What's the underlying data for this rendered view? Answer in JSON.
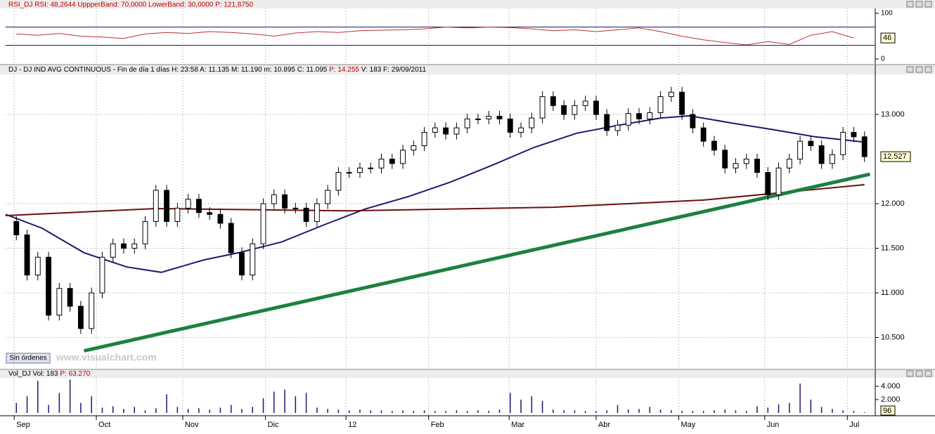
{
  "chart_data": {
    "type": "candlestick",
    "rsi_header": "RSI_DJ RSI: 48,2644 UppperBand: 70,0000 LowerBand: 30,0000 P: 121,8750",
    "price_header": "DJ - DJ IND AVG CONTINUOUS - Fin de día 1 días H: 23:58 A: 11.135 M: 11.190 m: 10.895 C: 11.095 ",
    "price_header_p": "P: 14.255",
    "price_header_rest": " V: 183 F: 29/09/2011",
    "volume_header": "Vol_DJ Vol: 183 ",
    "volume_header_p": "P: 63.270",
    "button": "Sin órdenes",
    "watermark": "www.visualchart.com",
    "xlim": [
      -1,
      80
    ],
    "xticks": [
      {
        "value": -0.2,
        "label": "Sep"
      },
      {
        "value": 7.45,
        "label": "Oct"
      },
      {
        "value": 15.5,
        "label": "Nov"
      },
      {
        "value": 23.2,
        "label": "Dic"
      },
      {
        "value": 30.7,
        "label": "12"
      },
      {
        "value": 38.4,
        "label": "Feb"
      },
      {
        "value": 45.9,
        "label": "Mar"
      },
      {
        "value": 54,
        "label": "Abr"
      },
      {
        "value": 61.7,
        "label": "May"
      },
      {
        "value": 69.7,
        "label": "Jun"
      },
      {
        "value": 77.4,
        "label": "Jul"
      }
    ],
    "ylim": [
      10150,
      13441
    ],
    "yticks": [
      {
        "value": 10500,
        "label": "10.500"
      },
      {
        "value": 11000,
        "label": "11.000"
      },
      {
        "value": 11500,
        "label": "11.500"
      },
      {
        "value": 12000,
        "label": "12.000"
      },
      {
        "value": 13000,
        "label": "13.000"
      }
    ],
    "last_price": {
      "value": 12527,
      "label": "12.527"
    },
    "up_color": "#ffffff",
    "down_color": "#000000",
    "open": [
      11800,
      11650,
      11200,
      11400,
      10750,
      11050,
      10850,
      10600,
      11000,
      11400,
      11550,
      11500,
      11550,
      11800,
      12150,
      11800,
      11950,
      12050,
      11900,
      11880,
      11780,
      11450,
      11200,
      11550,
      12000,
      12100,
      11950,
      11950,
      11800,
      12000,
      12150,
      12350,
      12350,
      12400,
      12400,
      12500,
      12450,
      12600,
      12650,
      12800,
      12850,
      12780,
      12850,
      12950,
      12950,
      12980,
      12950,
      12800,
      12850,
      12960,
      13200,
      13100,
      13000,
      13100,
      13150,
      13000,
      12820,
      12880,
      13010,
      12950,
      13020,
      13200,
      13250,
      13000,
      12850,
      12700,
      12600,
      12400,
      12450,
      12500,
      12350,
      12100,
      12400,
      12500,
      12700,
      12650,
      12450,
      12550,
      12800,
      12750
    ],
    "high": [
      11860,
      11710,
      11460,
      11460,
      11110,
      11110,
      10910,
      11060,
      11460,
      11610,
      11610,
      11610,
      11860,
      12210,
      12210,
      12010,
      12110,
      12110,
      11960,
      11940,
      11840,
      11510,
      11610,
      12060,
      12160,
      12160,
      12010,
      12010,
      12060,
      12210,
      12410,
      12410,
      12460,
      12460,
      12560,
      12560,
      12660,
      12710,
      12860,
      12910,
      12910,
      12910,
      13010,
      13010,
      13040,
      13040,
      13010,
      12910,
      13020,
      13260,
      13260,
      13160,
      13160,
      13210,
      13210,
      13060,
      12940,
      13070,
      13070,
      13080,
      13260,
      13310,
      13310,
      13060,
      12910,
      12760,
      12660,
      12510,
      12560,
      12560,
      12410,
      12460,
      12560,
      12760,
      12760,
      12710,
      12610,
      12860,
      12860,
      12810
    ],
    "low": [
      11590,
      11140,
      11140,
      10690,
      10690,
      10790,
      10540,
      10540,
      10940,
      11340,
      11440,
      11440,
      11490,
      11740,
      11740,
      11740,
      11890,
      11840,
      11820,
      11720,
      11390,
      11140,
      11140,
      11490,
      11940,
      11890,
      11890,
      11740,
      11740,
      11940,
      12090,
      12290,
      12290,
      12340,
      12340,
      12390,
      12390,
      12540,
      12590,
      12740,
      12720,
      12720,
      12790,
      12890,
      12890,
      12890,
      12740,
      12740,
      12790,
      12900,
      13040,
      12940,
      12940,
      13040,
      12940,
      12760,
      12760,
      12820,
      12890,
      12890,
      12960,
      13140,
      12940,
      12790,
      12640,
      12540,
      12340,
      12340,
      12390,
      12290,
      12040,
      12040,
      12340,
      12440,
      12590,
      12390,
      12390,
      12490,
      12690,
      12467
    ],
    "close": [
      11650,
      11200,
      11400,
      10750,
      11050,
      10850,
      10600,
      11000,
      11400,
      11550,
      11500,
      11550,
      11800,
      12150,
      11800,
      11950,
      12050,
      11900,
      11880,
      11780,
      11450,
      11200,
      11550,
      12000,
      12100,
      11950,
      11950,
      11800,
      12000,
      12150,
      12350,
      12350,
      12400,
      12400,
      12500,
      12450,
      12600,
      12650,
      12800,
      12850,
      12780,
      12850,
      12950,
      12950,
      12980,
      12950,
      12800,
      12850,
      12960,
      13200,
      13100,
      13000,
      13100,
      13150,
      13000,
      12820,
      12880,
      13010,
      12950,
      13020,
      13200,
      13250,
      13000,
      12850,
      12700,
      12600,
      12400,
      12450,
      12500,
      12350,
      12100,
      12400,
      12500,
      12700,
      12650,
      12450,
      12550,
      12800,
      12750,
      12527
    ],
    "overlays": [
      {
        "color": "#1a1a6e",
        "width": 2,
        "x": [
          -1,
          2.4,
          6.3,
          10.3,
          13.5,
          17.5,
          20.7,
          24.7,
          28.6,
          32.5,
          36.5,
          40.4,
          44.3,
          48.2,
          52.2,
          56.1,
          60,
          62.7,
          66.6,
          70.5,
          74.4,
          79
        ],
        "values": [
          11880,
          11725,
          11450,
          11290,
          11230,
          11370,
          11450,
          11570,
          11760,
          11940,
          12080,
          12240,
          12430,
          12630,
          12790,
          12880,
          12960,
          12985,
          12905,
          12830,
          12750,
          12690
        ]
      },
      {
        "color": "#6b1010",
        "width": 2,
        "x": [
          -1,
          13,
          31,
          50,
          64,
          79
        ],
        "values": [
          11866,
          11945,
          11920,
          11960,
          12040,
          12213
        ]
      },
      {
        "color": "#1e8040",
        "width": 5,
        "x": [
          6.3,
          79.5
        ],
        "values": [
          10350,
          12330
        ]
      }
    ],
    "rsi": {
      "color": "#c03030",
      "x": [
        0,
        2,
        4,
        6,
        8,
        10,
        12,
        14,
        16,
        18,
        20,
        22,
        24,
        26,
        28,
        30,
        32,
        34,
        36,
        38,
        40,
        42,
        44,
        46,
        48,
        50,
        52,
        54,
        56,
        58,
        60,
        62,
        64,
        66,
        68,
        70,
        72,
        74,
        76,
        78
      ],
      "values": [
        55,
        52,
        56,
        50,
        48,
        45,
        55,
        58,
        56,
        60,
        58,
        55,
        50,
        57,
        60,
        58,
        62,
        63,
        64,
        66,
        70,
        68,
        70,
        69,
        66,
        62,
        64,
        60,
        64,
        68,
        60,
        50,
        42,
        36,
        31,
        38,
        32,
        52,
        60,
        46
      ],
      "ylim": [
        0,
        100
      ],
      "yticks": [
        0,
        100
      ],
      "bands": [
        70,
        30
      ],
      "band_color": "#1a1a6e",
      "last": 46
    },
    "volume": {
      "color": "#1a1a6e",
      "ylim": [
        0,
        5260
      ],
      "yticks": [
        {
          "value": 2000,
          "label": "2.000"
        },
        {
          "value": 4000,
          "label": "4.000"
        }
      ],
      "last": 96,
      "values": [
        1500,
        2500,
        4800,
        1200,
        3000,
        5000,
        1500,
        2500,
        800,
        1000,
        600,
        900,
        400,
        700,
        2800,
        900,
        600,
        700,
        500,
        800,
        1200,
        600,
        900,
        2200,
        3200,
        3500,
        2500,
        3000,
        800,
        600,
        500,
        400,
        500,
        400,
        400,
        300,
        400,
        300,
        400,
        300,
        300,
        400,
        300,
        400,
        300,
        500,
        3000,
        2000,
        2500,
        1800,
        500,
        400,
        400,
        300,
        300,
        400,
        1200,
        500,
        600,
        900,
        500,
        400,
        300,
        300,
        300,
        400,
        500,
        400,
        300,
        1000,
        800,
        1300,
        1500,
        4400,
        2000,
        900,
        600,
        400,
        300,
        96
      ]
    }
  }
}
